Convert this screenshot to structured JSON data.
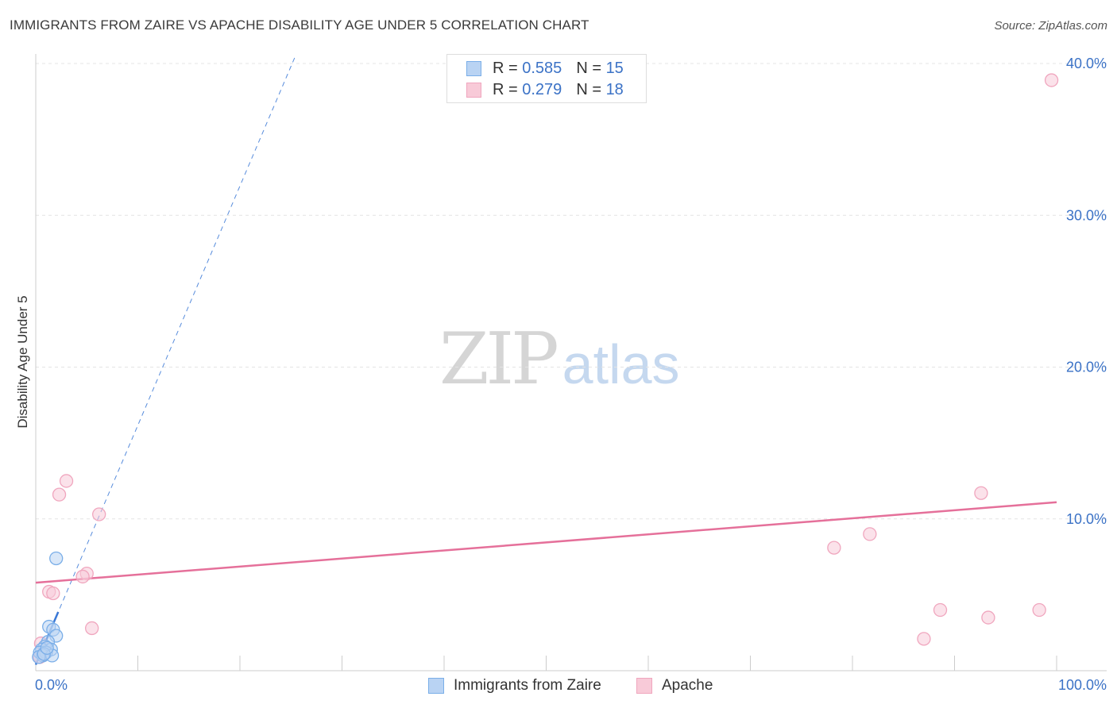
{
  "chart_data": {
    "type": "scatter",
    "title": "IMMIGRANTS FROM ZAIRE VS APACHE DISABILITY AGE UNDER 5 CORRELATION CHART",
    "source": "Source: ZipAtlas.com",
    "xlabel": "",
    "ylabel": "Disability Age Under 5",
    "xlim": [
      0,
      100
    ],
    "ylim": [
      0,
      40
    ],
    "x_tick_labels": [
      "0.0%",
      "100.0%"
    ],
    "y_ticks": [
      10,
      20,
      30,
      40
    ],
    "y_tick_labels": [
      "10.0%",
      "20.0%",
      "30.0%",
      "40.0%"
    ],
    "grid": true,
    "legend_position": "top-center",
    "series": [
      {
        "name": "Immigrants from Zaire",
        "color": "#7aaee8",
        "fill": "#b9d3f3",
        "line_color": "#3a78d6",
        "r_label": "R =",
        "r_value": "0.585",
        "n_label": "N =",
        "n_value": "15",
        "trend": {
          "x0": 0,
          "y0": 0.4,
          "x1": 25.5,
          "y1": 40.6,
          "solid_until_x": 2.2
        },
        "points": [
          {
            "x": 2.0,
            "y": 7.4
          },
          {
            "x": 1.3,
            "y": 2.9
          },
          {
            "x": 1.7,
            "y": 2.7
          },
          {
            "x": 2.0,
            "y": 2.3
          },
          {
            "x": 1.2,
            "y": 1.9
          },
          {
            "x": 0.9,
            "y": 1.6
          },
          {
            "x": 0.6,
            "y": 1.4
          },
          {
            "x": 1.5,
            "y": 1.4
          },
          {
            "x": 0.4,
            "y": 1.2
          },
          {
            "x": 1.0,
            "y": 1.2
          },
          {
            "x": 0.7,
            "y": 1.0
          },
          {
            "x": 1.6,
            "y": 1.0
          },
          {
            "x": 0.3,
            "y": 0.9
          },
          {
            "x": 0.8,
            "y": 1.1
          },
          {
            "x": 1.1,
            "y": 1.5
          }
        ]
      },
      {
        "name": "Apache",
        "color": "#f0a6be",
        "fill": "#f8cad8",
        "line_color": "#e5709a",
        "r_label": "R =",
        "r_value": "0.279",
        "n_label": "N =",
        "n_value": "18",
        "trend": {
          "x0": 0,
          "y0": 5.8,
          "x1": 100,
          "y1": 11.1
        },
        "points": [
          {
            "x": 99.5,
            "y": 38.9
          },
          {
            "x": 3.0,
            "y": 12.5
          },
          {
            "x": 2.3,
            "y": 11.6
          },
          {
            "x": 6.2,
            "y": 10.3
          },
          {
            "x": 92.6,
            "y": 11.7
          },
          {
            "x": 81.7,
            "y": 9.0
          },
          {
            "x": 78.2,
            "y": 8.1
          },
          {
            "x": 5.0,
            "y": 6.4
          },
          {
            "x": 4.6,
            "y": 6.2
          },
          {
            "x": 1.3,
            "y": 5.2
          },
          {
            "x": 1.7,
            "y": 5.1
          },
          {
            "x": 5.5,
            "y": 2.8
          },
          {
            "x": 88.6,
            "y": 4.0
          },
          {
            "x": 93.3,
            "y": 3.5
          },
          {
            "x": 98.3,
            "y": 4.0
          },
          {
            "x": 87.0,
            "y": 2.1
          },
          {
            "x": 0.5,
            "y": 1.8
          },
          {
            "x": 0.4,
            "y": 0.9
          }
        ]
      }
    ]
  }
}
